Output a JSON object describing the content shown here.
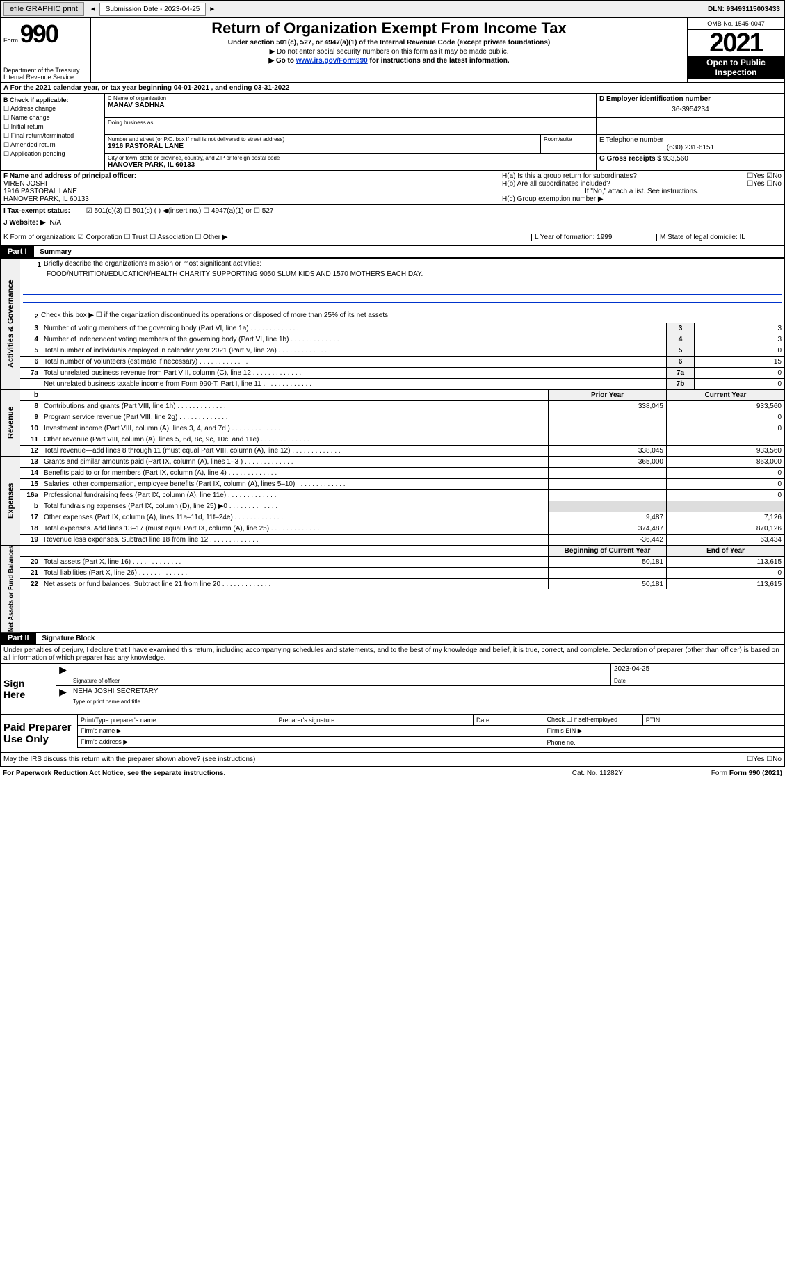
{
  "topbar": {
    "efile": "efile GRAPHIC print",
    "submission_label": "Submission Date - 2023-04-25",
    "dln": "DLN: 93493115003433"
  },
  "header": {
    "form_label": "Form",
    "form_num": "990",
    "title": "Return of Organization Exempt From Income Tax",
    "subtitle1": "Under section 501(c), 527, or 4947(a)(1) of the Internal Revenue Code (except private foundations)",
    "subtitle2": "▶ Do not enter social security numbers on this form as it may be made public.",
    "subtitle3_pre": "▶ Go to ",
    "subtitle3_link": "www.irs.gov/Form990",
    "subtitle3_post": " for instructions and the latest information.",
    "dept": "Department of the Treasury\nInternal Revenue Service",
    "omb": "OMB No. 1545-0047",
    "year": "2021",
    "public": "Open to Public Inspection"
  },
  "lineA": "A  For the 2021 calendar year, or tax year beginning 04-01-2021   , and ending 03-31-2022",
  "sectionB": {
    "title": "B Check if applicable:",
    "opts": [
      "Address change",
      "Name change",
      "Initial return",
      "Final return/terminated",
      "Amended return",
      "Application pending"
    ]
  },
  "sectionC": {
    "name_label": "C Name of organization",
    "name": "MANAV SADHNA",
    "dba_label": "Doing business as",
    "addr_label": "Number and street (or P.O. box if mail is not delivered to street address)",
    "room_label": "Room/suite",
    "addr": "1916 PASTORAL LANE",
    "city_label": "City or town, state or province, country, and ZIP or foreign postal code",
    "city": "HANOVER PARK, IL  60133"
  },
  "sectionD": {
    "label": "D Employer identification number",
    "val": "36-3954234"
  },
  "sectionE": {
    "label": "E Telephone number",
    "val": "(630) 231-6151"
  },
  "sectionG": {
    "label": "G Gross receipts $",
    "val": "933,560"
  },
  "sectionF": {
    "label": "F Name and address of principal officer:",
    "name": "VIREN JOSHI",
    "addr1": "1916 PASTORAL LANE",
    "addr2": "HANOVER PARK, IL  60133"
  },
  "sectionH": {
    "a": "H(a)  Is this a group return for subordinates?",
    "a_ans": "☐Yes ☑No",
    "b": "H(b)  Are all subordinates included?",
    "b_ans": "☐Yes ☐No",
    "b_note": "If \"No,\" attach a list. See instructions.",
    "c": "H(c)  Group exemption number ▶"
  },
  "sectionI": {
    "label": "I   Tax-exempt status:",
    "opts": "☑ 501(c)(3)   ☐ 501(c) (  ) ◀(insert no.)    ☐ 4947(a)(1) or  ☐ 527"
  },
  "sectionJ": {
    "label": "J   Website: ▶",
    "val": "N/A"
  },
  "sectionK": {
    "label": "K Form of organization:  ☑ Corporation ☐ Trust ☐ Association ☐ Other ▶"
  },
  "sectionL": {
    "label": "L Year of formation: 1999"
  },
  "sectionM": {
    "label": "M State of legal domicile: IL"
  },
  "part1": {
    "hdr": "Part I",
    "title": "Summary",
    "side1": "Activities & Governance",
    "side2": "Revenue",
    "side3": "Expenses",
    "side4": "Net Assets or Fund Balances",
    "l1": "Briefly describe the organization's mission or most significant activities:",
    "mission": "FOOD/NUTRITION/EDUCATION/HEALTH CHARITY SUPPORTING 9050 SLUM KIDS AND 1570 MOTHERS EACH DAY.",
    "l2": "Check this box ▶ ☐  if the organization discontinued its operations or disposed of more than 25% of its net assets.",
    "rows_ag": [
      {
        "n": "3",
        "d": "Number of voting members of the governing body (Part VI, line 1a)",
        "box": "3",
        "v": "3"
      },
      {
        "n": "4",
        "d": "Number of independent voting members of the governing body (Part VI, line 1b)",
        "box": "4",
        "v": "3"
      },
      {
        "n": "5",
        "d": "Total number of individuals employed in calendar year 2021 (Part V, line 2a)",
        "box": "5",
        "v": "0"
      },
      {
        "n": "6",
        "d": "Total number of volunteers (estimate if necessary)",
        "box": "6",
        "v": "15"
      },
      {
        "n": "7a",
        "d": "Total unrelated business revenue from Part VIII, column (C), line 12",
        "box": "7a",
        "v": "0"
      },
      {
        "n": "",
        "d": "Net unrelated business taxable income from Form 990-T, Part I, line 11",
        "box": "7b",
        "v": "0"
      }
    ],
    "col_prior": "Prior Year",
    "col_current": "Current Year",
    "rows_rev": [
      {
        "n": "8",
        "d": "Contributions and grants (Part VIII, line 1h)",
        "p": "338,045",
        "c": "933,560"
      },
      {
        "n": "9",
        "d": "Program service revenue (Part VIII, line 2g)",
        "p": "",
        "c": "0"
      },
      {
        "n": "10",
        "d": "Investment income (Part VIII, column (A), lines 3, 4, and 7d )",
        "p": "",
        "c": "0"
      },
      {
        "n": "11",
        "d": "Other revenue (Part VIII, column (A), lines 5, 6d, 8c, 9c, 10c, and 11e)",
        "p": "",
        "c": ""
      },
      {
        "n": "12",
        "d": "Total revenue—add lines 8 through 11 (must equal Part VIII, column (A), line 12)",
        "p": "338,045",
        "c": "933,560"
      }
    ],
    "rows_exp": [
      {
        "n": "13",
        "d": "Grants and similar amounts paid (Part IX, column (A), lines 1–3 )",
        "p": "365,000",
        "c": "863,000"
      },
      {
        "n": "14",
        "d": "Benefits paid to or for members (Part IX, column (A), line 4)",
        "p": "",
        "c": "0"
      },
      {
        "n": "15",
        "d": "Salaries, other compensation, employee benefits (Part IX, column (A), lines 5–10)",
        "p": "",
        "c": "0"
      },
      {
        "n": "16a",
        "d": "Professional fundraising fees (Part IX, column (A), line 11e)",
        "p": "",
        "c": "0"
      },
      {
        "n": "b",
        "d": "Total fundraising expenses (Part IX, column (D), line 25) ▶0",
        "p": "",
        "c": "",
        "gray": true
      },
      {
        "n": "17",
        "d": "Other expenses (Part IX, column (A), lines 11a–11d, 11f–24e)",
        "p": "9,487",
        "c": "7,126"
      },
      {
        "n": "18",
        "d": "Total expenses. Add lines 13–17 (must equal Part IX, column (A), line 25)",
        "p": "374,487",
        "c": "870,126"
      },
      {
        "n": "19",
        "d": "Revenue less expenses. Subtract line 18 from line 12",
        "p": "-36,442",
        "c": "63,434"
      }
    ],
    "col_begin": "Beginning of Current Year",
    "col_end": "End of Year",
    "rows_net": [
      {
        "n": "20",
        "d": "Total assets (Part X, line 16)",
        "p": "50,181",
        "c": "113,615"
      },
      {
        "n": "21",
        "d": "Total liabilities (Part X, line 26)",
        "p": "",
        "c": "0"
      },
      {
        "n": "22",
        "d": "Net assets or fund balances. Subtract line 21 from line 20",
        "p": "50,181",
        "c": "113,615"
      }
    ]
  },
  "part2": {
    "hdr": "Part II",
    "title": "Signature Block",
    "decl": "Under penalties of perjury, I declare that I have examined this return, including accompanying schedules and statements, and to the best of my knowledge and belief, it is true, correct, and complete. Declaration of preparer (other than officer) is based on all information of which preparer has any knowledge."
  },
  "sign": {
    "here": "Sign Here",
    "sig_label": "Signature of officer",
    "date": "2023-04-25",
    "date_label": "Date",
    "name": "NEHA JOSHI  SECRETARY",
    "name_label": "Type or print name and title"
  },
  "prep": {
    "title": "Paid Preparer Use Only",
    "h1": "Print/Type preparer's name",
    "h2": "Preparer's signature",
    "h3": "Date",
    "h4": "Check ☐ if self-employed",
    "h5": "PTIN",
    "firm": "Firm's name  ▶",
    "ein": "Firm's EIN ▶",
    "addr": "Firm's address ▶",
    "phone": "Phone no."
  },
  "footer": {
    "discuss": "May the IRS discuss this return with the preparer shown above? (see instructions)",
    "yn": "☐Yes  ☐No",
    "paperwork": "For Paperwork Reduction Act Notice, see the separate instructions.",
    "cat": "Cat. No. 11282Y",
    "form": "Form 990 (2021)"
  }
}
